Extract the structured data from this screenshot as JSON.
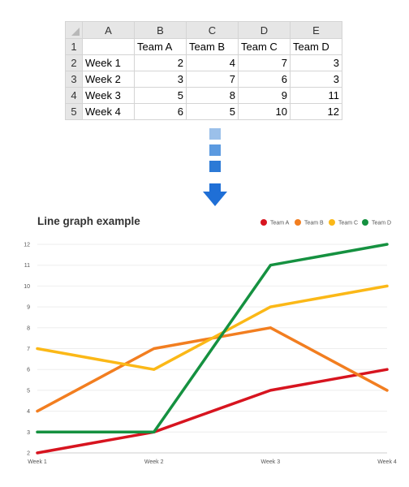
{
  "spreadsheet": {
    "column_headers": [
      "A",
      "B",
      "C",
      "D",
      "E"
    ],
    "row_numbers": [
      "1",
      "2",
      "3",
      "4",
      "5"
    ],
    "rows": [
      [
        "",
        "Team A",
        "Team B",
        "Team C",
        "Team D"
      ],
      [
        "Week 1",
        "2",
        "4",
        "7",
        "3"
      ],
      [
        "Week 2",
        "3",
        "7",
        "6",
        "3"
      ],
      [
        "Week 3",
        "5",
        "8",
        "9",
        "11"
      ],
      [
        "Week 4",
        "6",
        "5",
        "10",
        "12"
      ]
    ]
  },
  "arrow": {
    "colors": [
      "#9bc0ea",
      "#5b9ae0",
      "#2c7ad6",
      "#1f6fd6"
    ]
  },
  "chart_data": {
    "type": "line",
    "title": "Line graph example",
    "categories": [
      "Week 1",
      "Week 2",
      "Week 3",
      "Week 4"
    ],
    "series": [
      {
        "name": "Team A",
        "color": "#d7141f",
        "values": [
          2,
          3,
          5,
          6
        ]
      },
      {
        "name": "Team B",
        "color": "#f27e20",
        "values": [
          4,
          7,
          8,
          5
        ]
      },
      {
        "name": "Team C",
        "color": "#fbb817",
        "values": [
          7,
          6,
          9,
          10
        ]
      },
      {
        "name": "Team D",
        "color": "#159140",
        "values": [
          3,
          3,
          11,
          12
        ]
      }
    ],
    "yticks": [
      "2",
      "3",
      "4",
      "5",
      "6",
      "7",
      "8",
      "9",
      "10",
      "11",
      "12"
    ],
    "ylim": [
      2,
      12
    ],
    "grid": true,
    "legend_position": "top-right"
  }
}
